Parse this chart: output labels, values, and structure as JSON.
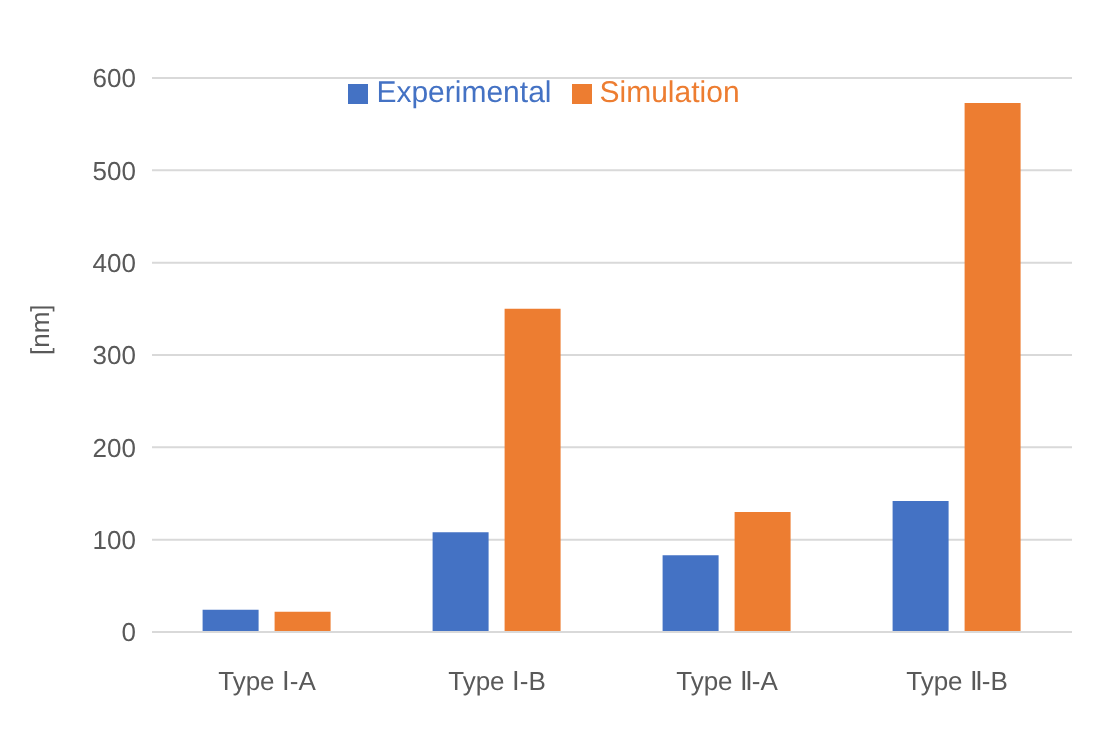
{
  "chart_data": {
    "type": "bar",
    "ylabel": "[nm]",
    "categories": [
      "Type Ⅰ-A",
      "Type Ⅰ-B",
      "Type Ⅱ-A",
      "Type Ⅱ-B"
    ],
    "series": [
      {
        "name": "Experimental",
        "color": "#4472c4",
        "values": [
          24,
          108,
          83,
          142
        ]
      },
      {
        "name": "Simulation",
        "color": "#ed7d31",
        "values": [
          22,
          350,
          130,
          573
        ]
      }
    ],
    "ylim": [
      0,
      600
    ],
    "yticks": [
      0,
      100,
      200,
      300,
      400,
      500,
      600
    ],
    "grid": "y",
    "legend": "top"
  }
}
